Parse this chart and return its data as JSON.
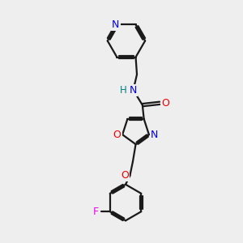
{
  "background_color": "#eeeeee",
  "bond_color": "#1a1a1a",
  "atom_colors": {
    "N": "#0000ee",
    "O": "#ee0000",
    "F": "#ee00ee",
    "H": "#008080",
    "C": "#1a1a1a"
  },
  "figsize": [
    3.0,
    3.0
  ],
  "dpi": 100,
  "xlim": [
    0,
    10
  ],
  "ylim": [
    0,
    10
  ],
  "lw": 1.6,
  "fs": 8.5
}
